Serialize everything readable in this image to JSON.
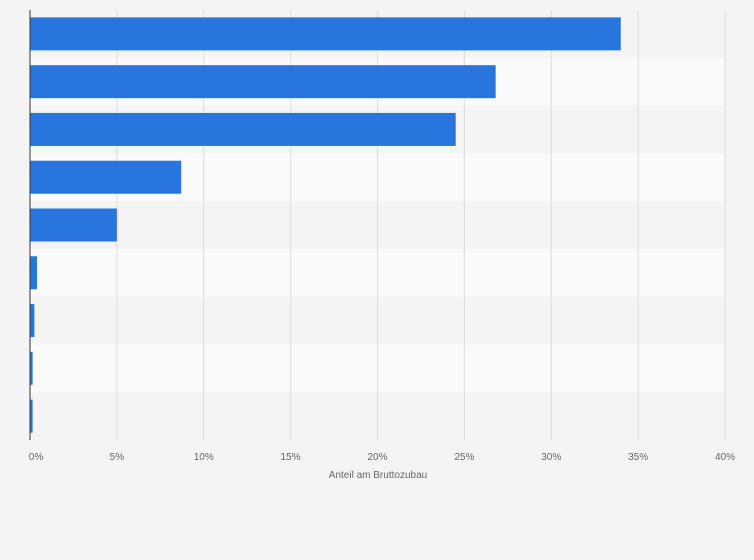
{
  "chart_data": {
    "type": "bar",
    "orientation": "horizontal",
    "categories": [
      "",
      "",
      "",
      "",
      "",
      "",
      "",
      "",
      ""
    ],
    "values": [
      34.0,
      26.8,
      24.5,
      8.7,
      5.0,
      0.4,
      0.25,
      0.15,
      0.15
    ],
    "title": "",
    "xlabel": "Anteil am Bruttozubau",
    "ylabel": "",
    "xlim": [
      0,
      40
    ],
    "x_ticks": [
      0,
      5,
      10,
      15,
      20,
      25,
      30,
      35,
      40
    ],
    "x_tick_labels": [
      "0%",
      "5%",
      "10%",
      "15%",
      "20%",
      "25%",
      "30%",
      "35%",
      "40%"
    ],
    "grid": true,
    "legend": "none",
    "colors": {
      "bar": "#2876dd",
      "background": "#f4f4f4",
      "band_light": "#fafafa",
      "band_dark": "#f4f4f4",
      "gridline": "#dcdcdc",
      "axis": "#333333",
      "text": "#666666"
    }
  }
}
